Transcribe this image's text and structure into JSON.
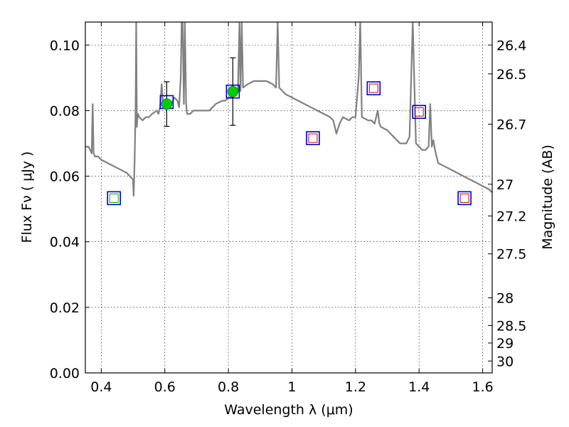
{
  "chart_data": {
    "type": "scatter",
    "xlabel": "Wavelength  λ (μm)",
    "ylabel": "Flux  Fν  ( μJy )",
    "y2label": "Magnitude (AB)",
    "xlim": [
      0.35,
      1.63
    ],
    "ylim": [
      0.0,
      0.107
    ],
    "grid": true,
    "x_ticks": [
      {
        "value": 0.4,
        "label": "0.4"
      },
      {
        "value": 0.6,
        "label": "0.6"
      },
      {
        "value": 0.8,
        "label": "0.8"
      },
      {
        "value": 1.0,
        "label": "1"
      },
      {
        "value": 1.2,
        "label": "1.2"
      },
      {
        "value": 1.4,
        "label": "1.4"
      },
      {
        "value": 1.6,
        "label": "1.6"
      }
    ],
    "y_ticks": [
      {
        "value": 0.0,
        "label": "0.00"
      },
      {
        "value": 0.02,
        "label": "0.02"
      },
      {
        "value": 0.04,
        "label": "0.04"
      },
      {
        "value": 0.06,
        "label": "0.06"
      },
      {
        "value": 0.08,
        "label": "0.08"
      },
      {
        "value": 0.1,
        "label": "0.10"
      }
    ],
    "magnitude_ticks": [
      {
        "mag": 26.4,
        "label": "26.4"
      },
      {
        "mag": 26.5,
        "label": "26.5"
      },
      {
        "mag": 26.7,
        "label": "26.7"
      },
      {
        "mag": 27.0,
        "label": "27"
      },
      {
        "mag": 27.2,
        "label": "27.2"
      },
      {
        "mag": 27.5,
        "label": "27.5"
      },
      {
        "mag": 28.0,
        "label": "28"
      },
      {
        "mag": 28.5,
        "label": "28.5"
      },
      {
        "mag": 29.0,
        "label": "29"
      },
      {
        "mag": 30.0,
        "label": "30"
      }
    ],
    "model_sed": {
      "color": "#808080",
      "points": [
        [
          0.35,
          0.069
        ],
        [
          0.36,
          0.069
        ],
        [
          0.365,
          0.068
        ],
        [
          0.37,
          0.067
        ],
        [
          0.373,
          0.082
        ],
        [
          0.376,
          0.067
        ],
        [
          0.38,
          0.066
        ],
        [
          0.39,
          0.066
        ],
        [
          0.4,
          0.065
        ],
        [
          0.42,
          0.064
        ],
        [
          0.44,
          0.063
        ],
        [
          0.46,
          0.062
        ],
        [
          0.48,
          0.061
        ],
        [
          0.49,
          0.06
        ],
        [
          0.5,
          0.059
        ],
        [
          0.502,
          0.054
        ],
        [
          0.505,
          0.065
        ],
        [
          0.508,
          0.08
        ],
        [
          0.51,
          0.107
        ],
        [
          0.512,
          0.075
        ],
        [
          0.515,
          0.079
        ],
        [
          0.52,
          0.078
        ],
        [
          0.53,
          0.077
        ],
        [
          0.54,
          0.078
        ],
        [
          0.55,
          0.078
        ],
        [
          0.56,
          0.079
        ],
        [
          0.575,
          0.08
        ],
        [
          0.58,
          0.079
        ],
        [
          0.585,
          0.081
        ],
        [
          0.59,
          0.088
        ],
        [
          0.595,
          0.081
        ],
        [
          0.6,
          0.082
        ],
        [
          0.61,
          0.081
        ],
        [
          0.62,
          0.082
        ],
        [
          0.63,
          0.084
        ],
        [
          0.64,
          0.083
        ],
        [
          0.645,
          0.081
        ],
        [
          0.65,
          0.09
        ],
        [
          0.653,
          0.107
        ],
        [
          0.656,
          0.107
        ],
        [
          0.66,
          0.082
        ],
        [
          0.663,
          0.107
        ],
        [
          0.667,
          0.082
        ],
        [
          0.67,
          0.079
        ],
        [
          0.68,
          0.079
        ],
        [
          0.69,
          0.08
        ],
        [
          0.7,
          0.08
        ],
        [
          0.72,
          0.08
        ],
        [
          0.74,
          0.08
        ],
        [
          0.75,
          0.081
        ],
        [
          0.76,
          0.082
        ],
        [
          0.78,
          0.083
        ],
        [
          0.79,
          0.083
        ],
        [
          0.8,
          0.084
        ],
        [
          0.81,
          0.084
        ],
        [
          0.82,
          0.085
        ],
        [
          0.83,
          0.086
        ],
        [
          0.835,
          0.107
        ],
        [
          0.838,
          0.086
        ],
        [
          0.842,
          0.107
        ],
        [
          0.846,
          0.087
        ],
        [
          0.86,
          0.088
        ],
        [
          0.88,
          0.089
        ],
        [
          0.9,
          0.089
        ],
        [
          0.92,
          0.089
        ],
        [
          0.94,
          0.088
        ],
        [
          0.95,
          0.087
        ],
        [
          0.955,
          0.107
        ],
        [
          0.96,
          0.087
        ],
        [
          0.98,
          0.085
        ],
        [
          1.0,
          0.084
        ],
        [
          1.02,
          0.083
        ],
        [
          1.04,
          0.082
        ],
        [
          1.06,
          0.081
        ],
        [
          1.08,
          0.08
        ],
        [
          1.1,
          0.079
        ],
        [
          1.12,
          0.078
        ],
        [
          1.13,
          0.077
        ],
        [
          1.14,
          0.073
        ],
        [
          1.15,
          0.076
        ],
        [
          1.16,
          0.078
        ],
        [
          1.18,
          0.077
        ],
        [
          1.19,
          0.078
        ],
        [
          1.2,
          0.078
        ],
        [
          1.21,
          0.09
        ],
        [
          1.215,
          0.107
        ],
        [
          1.22,
          0.078
        ],
        [
          1.24,
          0.077
        ],
        [
          1.25,
          0.077
        ],
        [
          1.26,
          0.076
        ],
        [
          1.27,
          0.08
        ],
        [
          1.275,
          0.076
        ],
        [
          1.28,
          0.075
        ],
        [
          1.3,
          0.074
        ],
        [
          1.32,
          0.072
        ],
        [
          1.34,
          0.07
        ],
        [
          1.36,
          0.07
        ],
        [
          1.37,
          0.072
        ],
        [
          1.38,
          0.107
        ],
        [
          1.39,
          0.07
        ],
        [
          1.4,
          0.069
        ],
        [
          1.41,
          0.068
        ],
        [
          1.42,
          0.068
        ],
        [
          1.43,
          0.069
        ],
        [
          1.435,
          0.082
        ],
        [
          1.44,
          0.069
        ],
        [
          1.445,
          0.071
        ],
        [
          1.45,
          0.068
        ],
        [
          1.46,
          0.064
        ],
        [
          1.48,
          0.063
        ],
        [
          1.5,
          0.062
        ],
        [
          1.52,
          0.061
        ],
        [
          1.54,
          0.06
        ],
        [
          1.56,
          0.059
        ],
        [
          1.58,
          0.058
        ],
        [
          1.6,
          0.057
        ],
        [
          1.62,
          0.056
        ],
        [
          1.63,
          0.055
        ]
      ]
    },
    "model_photometry": [
      {
        "x": 0.44,
        "y": 0.0533
      },
      {
        "x": 0.606,
        "y": 0.0826
      },
      {
        "x": 0.814,
        "y": 0.0858
      },
      {
        "x": 1.066,
        "y": 0.0716
      },
      {
        "x": 1.257,
        "y": 0.0868
      },
      {
        "x": 1.4,
        "y": 0.0796
      },
      {
        "x": 1.543,
        "y": 0.0533
      }
    ],
    "nondetection_markers": [
      {
        "x": 0.44,
        "y": 0.0533,
        "color": "#00aa00"
      },
      {
        "x": 1.066,
        "y": 0.0716,
        "color": "#cc0000"
      },
      {
        "x": 1.257,
        "y": 0.0868,
        "color": "#cc0000"
      },
      {
        "x": 1.4,
        "y": 0.0796,
        "color": "#cc0000"
      },
      {
        "x": 1.543,
        "y": 0.0533,
        "color": "#cc0000"
      }
    ],
    "observed_photometry": [
      {
        "x": 0.606,
        "y": 0.082,
        "err": 0.0068
      },
      {
        "x": 0.814,
        "y": 0.0858,
        "err": 0.0103
      }
    ],
    "colors": {
      "observed": "#00cc00",
      "model_box": "#0000cc",
      "errorbar": "#000000"
    }
  }
}
